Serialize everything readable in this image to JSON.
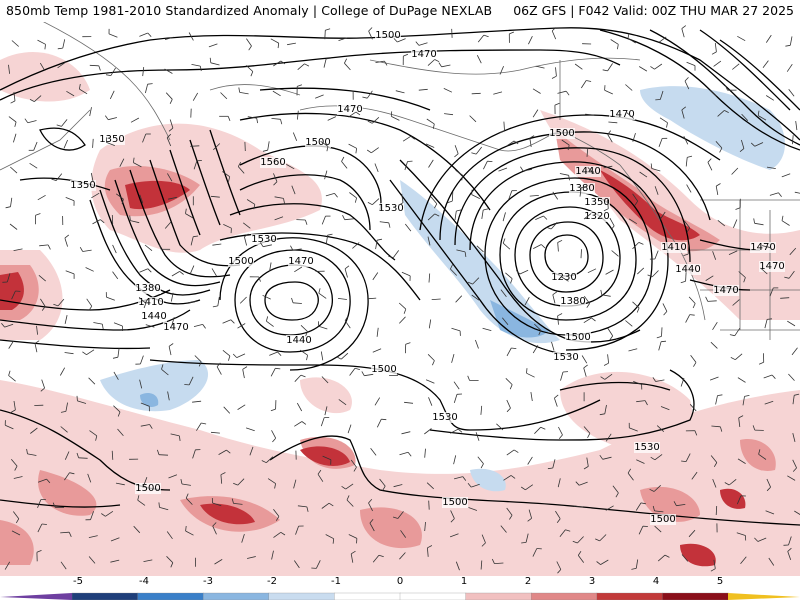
{
  "header": {
    "title": "850mb Temp 1981-2010 Standardized Anomaly | College of DuPage NEXLAB",
    "run": "06Z GFS | F042 Valid: 00Z THU MAR 27 2025"
  },
  "contour_labels": [
    "1500",
    "1470",
    "1470",
    "1350",
    "1350",
    "1560",
    "1500",
    "1530",
    "1530",
    "1500",
    "1470",
    "1440",
    "1470",
    "1380",
    "1410",
    "1440",
    "1470",
    "1500",
    "1440",
    "1380",
    "1350",
    "1320",
    "1230",
    "1380",
    "1500",
    "1530",
    "1470",
    "1410",
    "1440",
    "1470",
    "1470",
    "1500",
    "1530",
    "1530",
    "1500",
    "1500",
    "1500"
  ],
  "colorbar": {
    "ticks": [
      "-5",
      "-4",
      "-3",
      "-2",
      "-1",
      "0",
      "1",
      "2",
      "3",
      "4",
      "5"
    ],
    "colors": [
      "#6e3fa0",
      "#1f3f7a",
      "#3a7fc8",
      "#8ab6e0",
      "#c9dcef",
      "#ffffff",
      "#ffffff",
      "#f1c0c0",
      "#e08888",
      "#c23a3a",
      "#8a0f1a",
      "#f0c020"
    ]
  }
}
